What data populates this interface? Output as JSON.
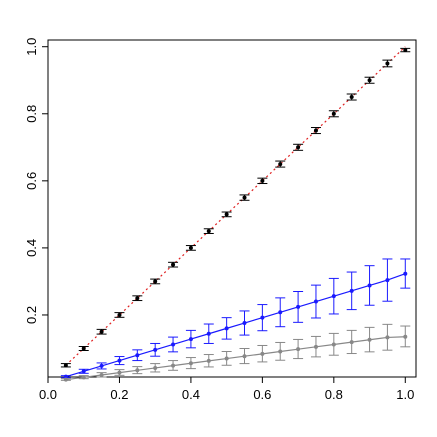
{
  "chart_data": {
    "type": "line",
    "title": "",
    "xlabel": "",
    "ylabel": "",
    "xlim": [
      0.0,
      1.03
    ],
    "ylim": [
      0.015,
      1.02
    ],
    "x_ticks": [
      0.0,
      0.2,
      0.4,
      0.6,
      0.8,
      1.0
    ],
    "x_tick_labels": [
      "0.0",
      "0.2",
      "0.4",
      "0.6",
      "0.8",
      "1.0"
    ],
    "y_ticks": [
      0.2,
      0.4,
      0.6,
      0.8,
      1.0
    ],
    "y_tick_labels": [
      "0.2",
      "0.4",
      "0.6",
      "0.8",
      "1.0"
    ],
    "grid": false,
    "legend": "none",
    "x": [
      0.05,
      0.1,
      0.15,
      0.2,
      0.25,
      0.3,
      0.35,
      0.4,
      0.45,
      0.5,
      0.55,
      0.6,
      0.65,
      0.7,
      0.75,
      0.8,
      0.85,
      0.9,
      0.95,
      1.0
    ],
    "reference_line": {
      "from": [
        0.05,
        0.05
      ],
      "to": [
        1.0,
        1.0
      ],
      "color": "#e02020",
      "style": "dotted"
    },
    "series": [
      {
        "color": "#000000",
        "values": [
          0.05,
          0.1,
          0.15,
          0.2,
          0.25,
          0.3,
          0.35,
          0.4,
          0.45,
          0.5,
          0.55,
          0.6,
          0.65,
          0.7,
          0.75,
          0.8,
          0.85,
          0.9,
          0.95,
          0.99
        ],
        "lower": [
          0.045,
          0.094,
          0.143,
          0.193,
          0.243,
          0.293,
          0.343,
          0.393,
          0.443,
          0.493,
          0.542,
          0.592,
          0.641,
          0.691,
          0.741,
          0.791,
          0.841,
          0.891,
          0.94,
          0.985
        ],
        "upper": [
          0.055,
          0.106,
          0.157,
          0.207,
          0.257,
          0.307,
          0.357,
          0.407,
          0.457,
          0.507,
          0.558,
          0.608,
          0.659,
          0.709,
          0.759,
          0.809,
          0.859,
          0.909,
          0.96,
          0.995
        ],
        "show_line": false
      },
      {
        "color": "#1a1aff",
        "values": [
          0.016,
          0.032,
          0.048,
          0.064,
          0.08,
          0.096,
          0.112,
          0.128,
          0.144,
          0.16,
          0.176,
          0.192,
          0.208,
          0.224,
          0.24,
          0.256,
          0.272,
          0.288,
          0.304,
          0.323
        ],
        "lower": [
          0.013,
          0.026,
          0.039,
          0.052,
          0.064,
          0.077,
          0.09,
          0.102,
          0.115,
          0.128,
          0.14,
          0.153,
          0.165,
          0.178,
          0.191,
          0.203,
          0.216,
          0.229,
          0.241,
          0.28
        ],
        "upper": [
          0.019,
          0.038,
          0.057,
          0.076,
          0.096,
          0.115,
          0.134,
          0.154,
          0.173,
          0.192,
          0.212,
          0.231,
          0.251,
          0.27,
          0.289,
          0.309,
          0.328,
          0.347,
          0.367,
          0.367
        ],
        "show_line": true
      },
      {
        "color": "#888888",
        "values": [
          0.007,
          0.014,
          0.021,
          0.028,
          0.035,
          0.042,
          0.049,
          0.056,
          0.063,
          0.07,
          0.077,
          0.084,
          0.091,
          0.098,
          0.105,
          0.112,
          0.119,
          0.126,
          0.133,
          0.135
        ],
        "lower": [
          0.005,
          0.01,
          0.015,
          0.02,
          0.025,
          0.03,
          0.035,
          0.04,
          0.045,
          0.05,
          0.055,
          0.06,
          0.065,
          0.07,
          0.075,
          0.08,
          0.085,
          0.09,
          0.095,
          0.105
        ],
        "upper": [
          0.01,
          0.019,
          0.028,
          0.037,
          0.046,
          0.055,
          0.064,
          0.073,
          0.082,
          0.091,
          0.1,
          0.109,
          0.118,
          0.127,
          0.136,
          0.145,
          0.154,
          0.163,
          0.172,
          0.167
        ],
        "show_line": true
      }
    ]
  }
}
